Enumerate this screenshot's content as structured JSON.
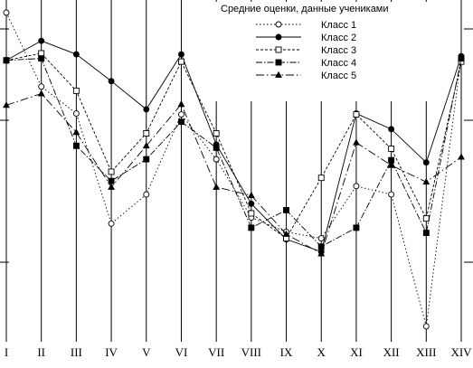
{
  "chart_data": {
    "type": "line",
    "title": "",
    "xlabel": "",
    "ylabel": "",
    "ylim": [
      0,
      100
    ],
    "grid": "vertical",
    "legend_placement": "top-right",
    "legend_title": "Средние оценки, данные учениками",
    "categories": [
      "I",
      "II",
      "III",
      "IV",
      "V",
      "VI",
      "VII",
      "VIII",
      "IX",
      "X",
      "XI",
      "XII",
      "XIII",
      "XIV"
    ],
    "series": [
      {
        "name": "Класс 1",
        "marker": "circle-open",
        "dash": "1.5 2.5",
        "values": [
          100,
          76.9,
          68.5,
          34.1,
          43.2,
          68.2,
          54.2,
          36.0,
          31.5,
          29.5,
          45.8,
          43.2,
          2.0,
          86.1
        ]
      },
      {
        "name": "Класс 2",
        "marker": "circle-filled",
        "dash": "",
        "values": [
          85.1,
          91.2,
          87.0,
          78.6,
          69.8,
          87.0,
          58.8,
          40.3,
          29.2,
          25.3,
          68.5,
          63.6,
          53.2,
          86.4
        ]
      },
      {
        "name": "Класс 3",
        "marker": "square-open",
        "dash": "3 2",
        "values": [
          85.1,
          87.3,
          75.6,
          50.3,
          62.3,
          84.7,
          62.3,
          37.3,
          29.5,
          48.4,
          68.2,
          57.5,
          35.7,
          84.7
        ]
      },
      {
        "name": "Класс 4",
        "marker": "square-filled",
        "dash": "7 2 1.5 2",
        "values": [
          85.1,
          85.7,
          58.4,
          47.4,
          54.2,
          65.9,
          57.8,
          32.8,
          38.3,
          26.9,
          32.8,
          53.9,
          31.2,
          85.7
        ]
      },
      {
        "name": "Класс 5",
        "marker": "triangle-filled",
        "dash": "9 3 1.5 3",
        "values": [
          71.1,
          74.7,
          62.6,
          45.5,
          58.4,
          71.4,
          45.5,
          42.9,
          30.8,
          24.7,
          59.4,
          52.3,
          47.1,
          54.9
        ]
      }
    ]
  }
}
